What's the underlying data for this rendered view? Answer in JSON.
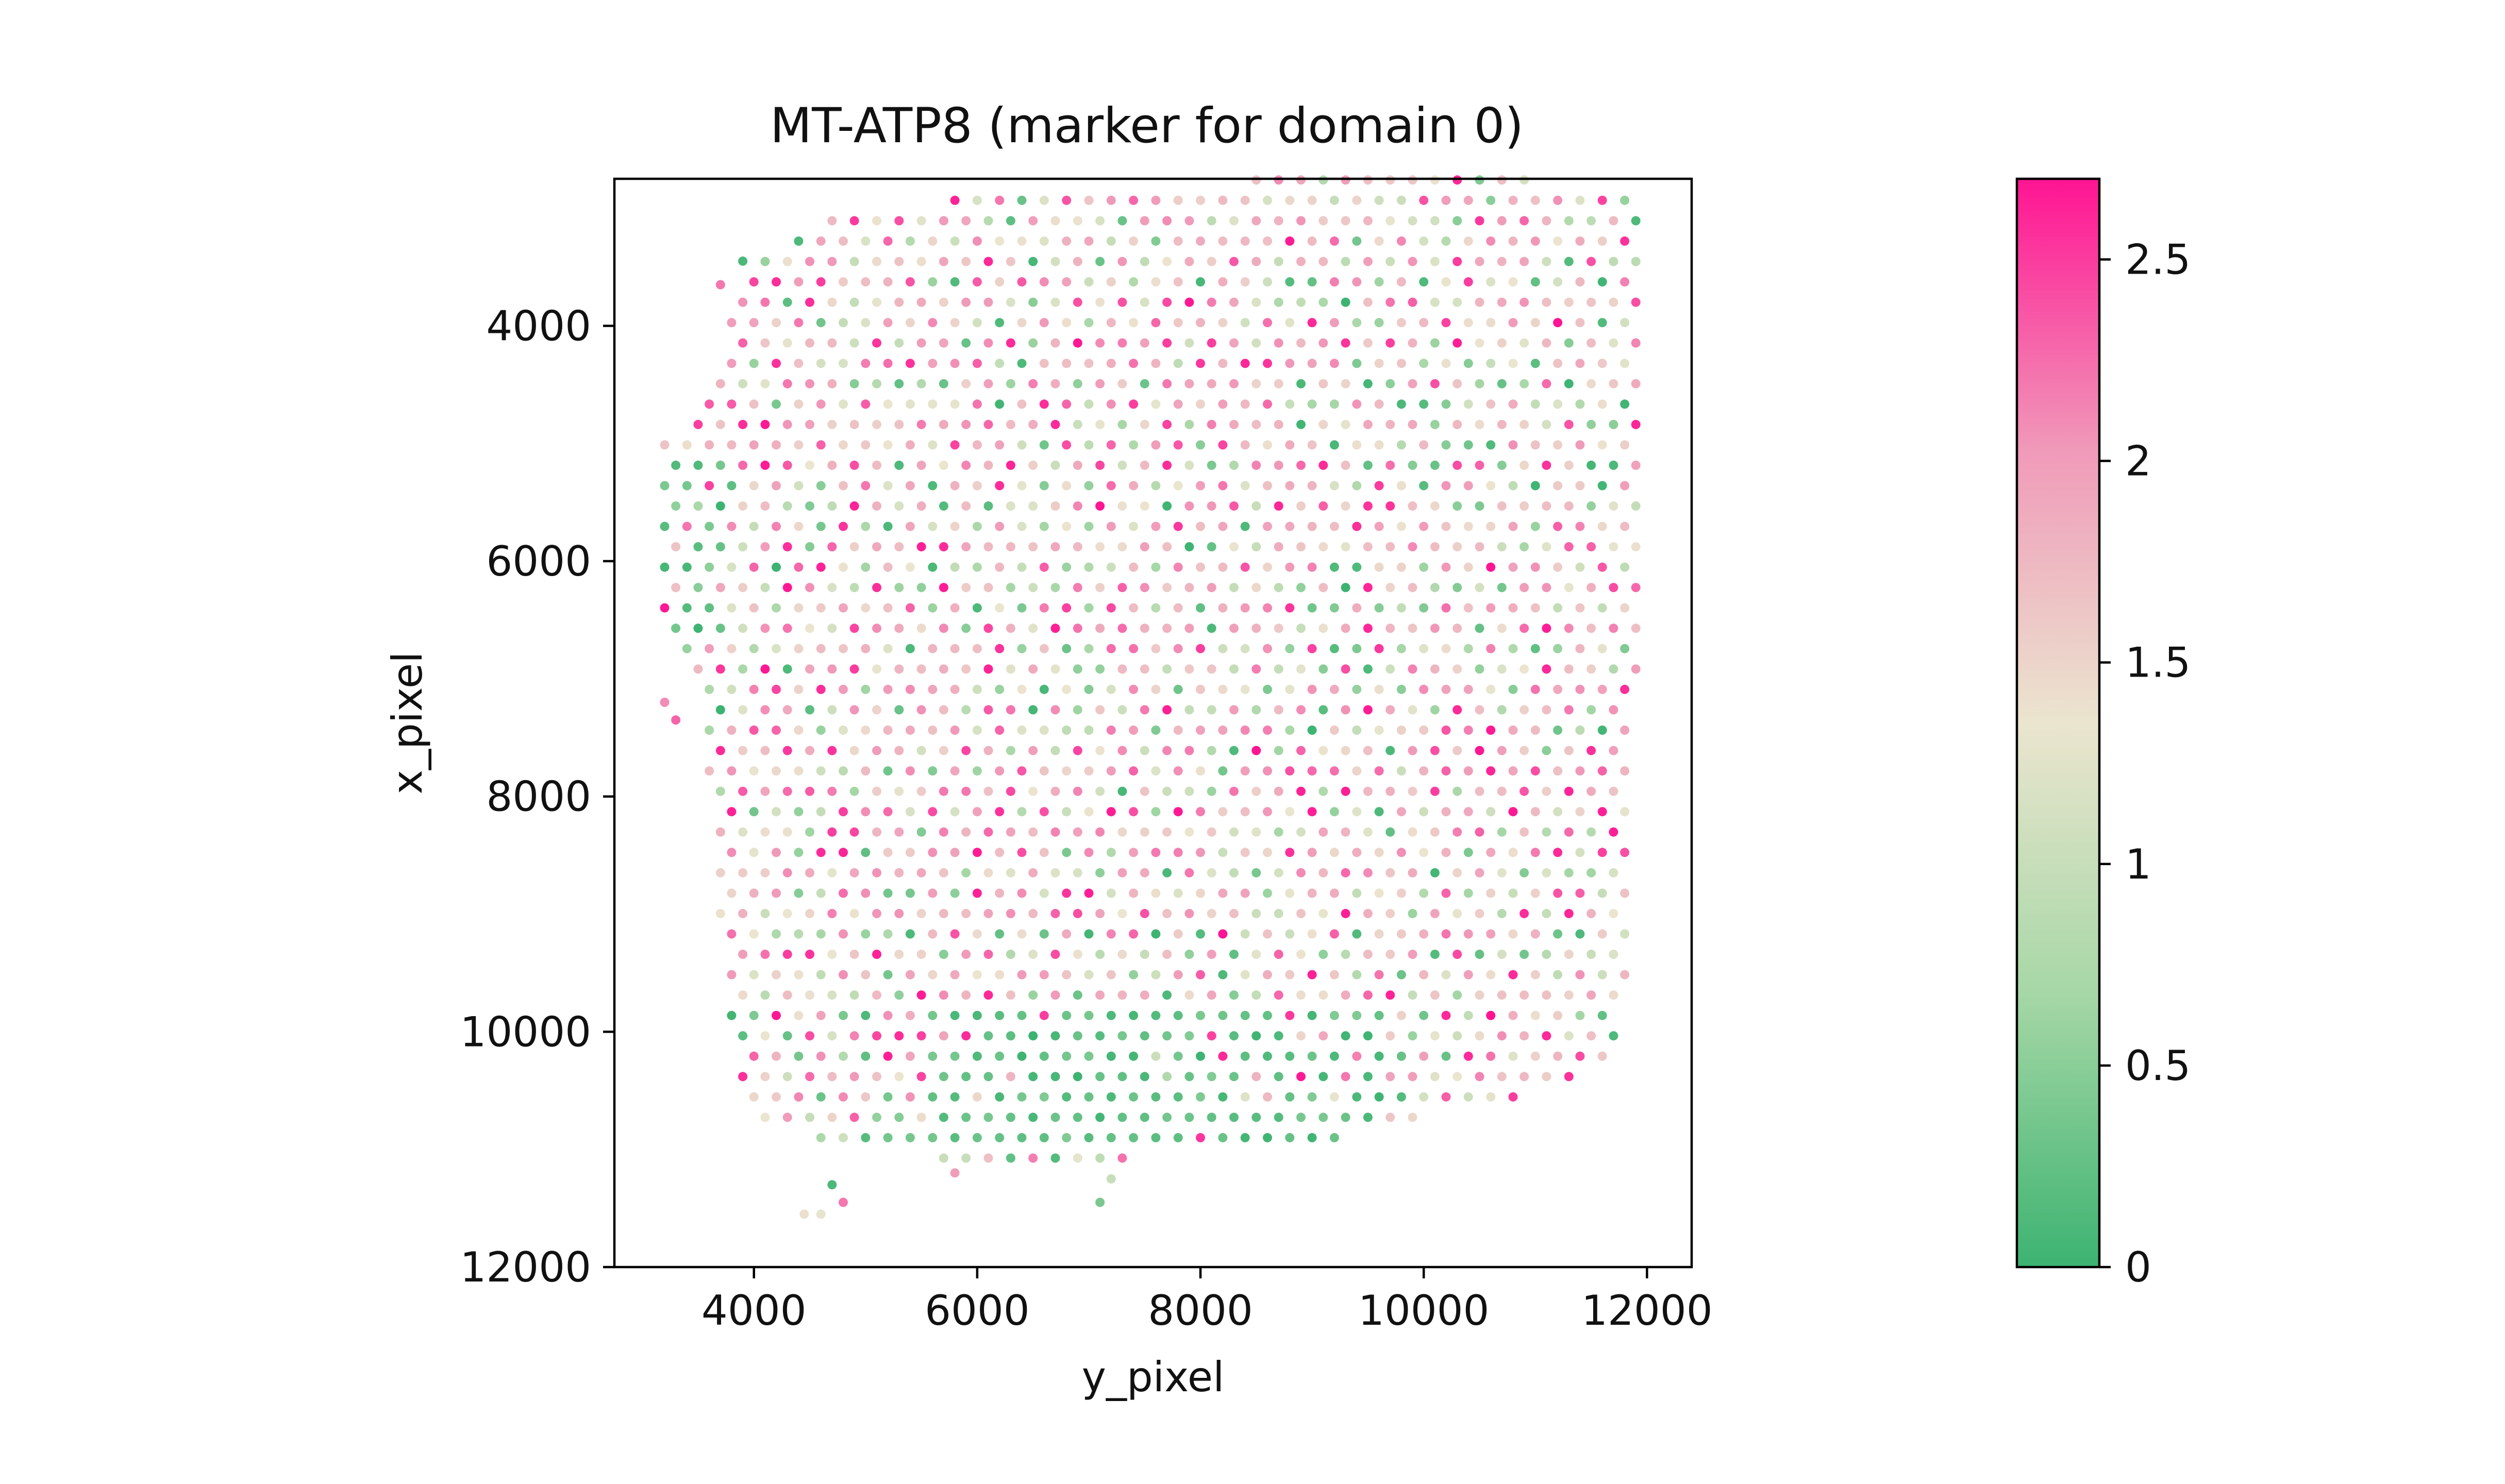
{
  "chart_data": {
    "type": "scatter",
    "title": "MT-ATP8 (marker for domain 0)",
    "xlabel": "y_pixel",
    "ylabel": "x_pixel",
    "xlim": [
      2750,
      12400
    ],
    "ylim": [
      12000,
      2750
    ],
    "y_inverted": true,
    "xticks": [
      4000,
      6000,
      8000,
      10000,
      12000
    ],
    "xtick_labels": [
      "4000",
      "6000",
      "8000",
      "10000",
      "12000"
    ],
    "yticks": [
      4000,
      6000,
      8000,
      10000,
      12000
    ],
    "ytick_labels": [
      "4000",
      "6000",
      "8000",
      "10000",
      "12000"
    ],
    "grid": false,
    "legend": "none",
    "spot_spacing": 200,
    "colorbar": {
      "range": [
        0,
        2.7
      ],
      "ticks": [
        0,
        0.5,
        1,
        1.5,
        2,
        2.5
      ],
      "tick_labels": [
        "0",
        "0.5",
        "1",
        "1.5",
        "2",
        "2.5"
      ],
      "colors": [
        "#3cb371",
        "#a6d7a6",
        "#ebe5cf",
        "#f09ab9",
        "#ff1493"
      ]
    },
    "tissue_boundary": [
      [
        3200,
        5000
      ],
      [
        3450,
        4600
      ],
      [
        3700,
        4200
      ],
      [
        3900,
        3700
      ],
      [
        4100,
        3400
      ],
      [
        4500,
        3150
      ],
      [
        5200,
        2950
      ],
      [
        6000,
        2920
      ],
      [
        6700,
        2920
      ],
      [
        7400,
        2920
      ],
      [
        8400,
        2750
      ],
      [
        9500,
        2750
      ],
      [
        10800,
        2750
      ],
      [
        11900,
        2850
      ],
      [
        11950,
        4000
      ],
      [
        11950,
        6000
      ],
      [
        11850,
        8000
      ],
      [
        11900,
        9500
      ],
      [
        11700,
        10200
      ],
      [
        11200,
        10500
      ],
      [
        10500,
        10600
      ],
      [
        9600,
        10850
      ],
      [
        8800,
        11050
      ],
      [
        7800,
        11050
      ],
      [
        6900,
        11100
      ],
      [
        6100,
        11250
      ],
      [
        5300,
        11000
      ],
      [
        4600,
        11000
      ],
      [
        4000,
        10700
      ],
      [
        3800,
        10100
      ],
      [
        3700,
        9000
      ],
      [
        3600,
        8000
      ],
      [
        3500,
        7200
      ],
      [
        3300,
        6900
      ],
      [
        3150,
        6200
      ],
      [
        3150,
        5500
      ]
    ],
    "low_expression_region": [
      [
        5600,
        9700
      ],
      [
        9600,
        11050
      ],
      [
        3200,
        5100
      ],
      [
        3750,
        6800
      ]
    ],
    "outlier_spots": [
      {
        "x": 4450,
        "y": 11550,
        "value": 1.4
      },
      {
        "x": 4600,
        "y": 11550,
        "value": 1.3
      },
      {
        "x": 4700,
        "y": 11300,
        "value": 0.1
      },
      {
        "x": 4800,
        "y": 11450,
        "value": 2.2
      },
      {
        "x": 7100,
        "y": 11450,
        "value": 0.4
      },
      {
        "x": 7200,
        "y": 11250,
        "value": 1.0
      },
      {
        "x": 5800,
        "y": 11200,
        "value": 2.0
      },
      {
        "x": 3200,
        "y": 7200,
        "value": 2.1
      },
      {
        "x": 3300,
        "y": 7350,
        "value": 2.3
      },
      {
        "x": 3700,
        "y": 3650,
        "value": 2.2
      },
      {
        "x": 3900,
        "y": 3450,
        "value": 0.1
      }
    ]
  }
}
